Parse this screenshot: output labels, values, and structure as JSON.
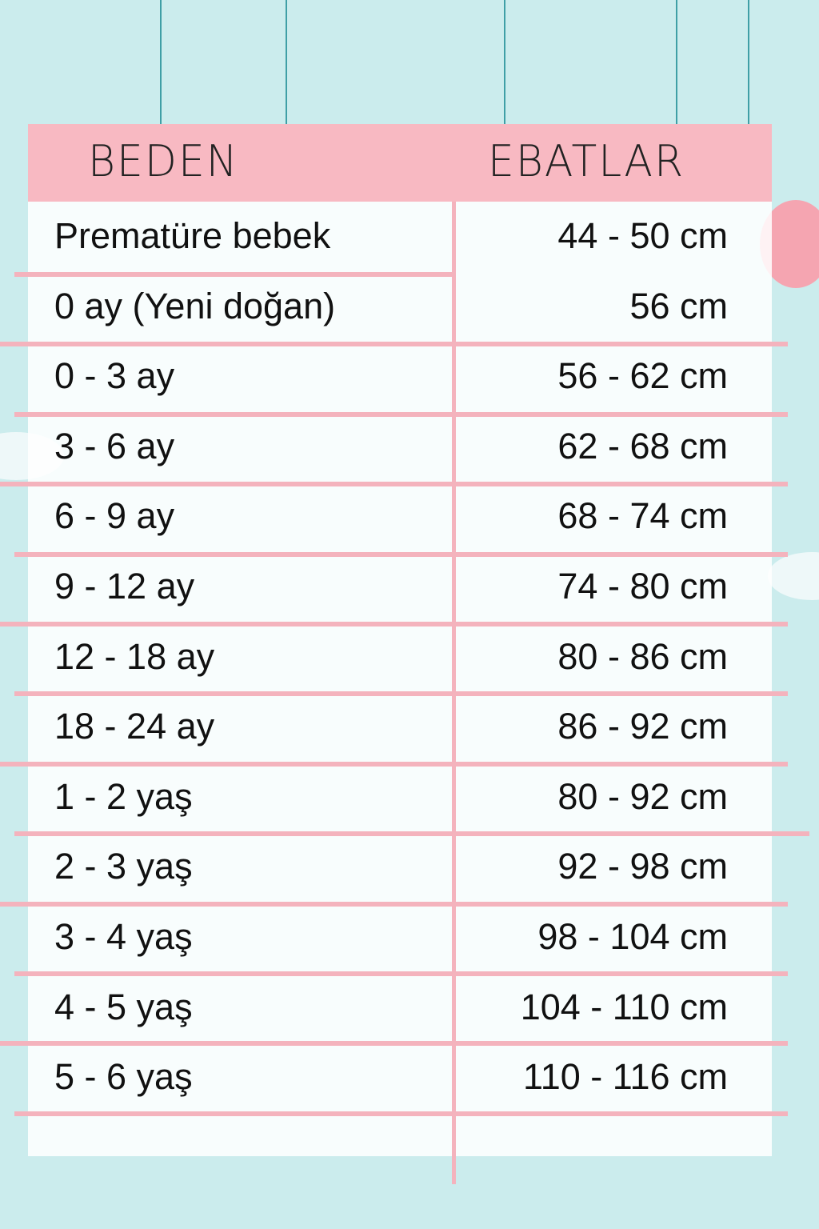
{
  "header": {
    "size_label": "BEDEN",
    "dimension_label": "EBATLAR"
  },
  "colors": {
    "background": "#cbeced",
    "header": "#f8b9c2",
    "rules": "#f4b3bd",
    "strings": "#3f9fa6"
  },
  "rows": [
    {
      "size": "Prematüre bebek",
      "dimension": "44 - 50 cm"
    },
    {
      "size": "0 ay (Yeni doğan)",
      "dimension": "56 cm"
    },
    {
      "size": "0 - 3 ay",
      "dimension": "56 - 62 cm"
    },
    {
      "size": "3 - 6 ay",
      "dimension": "62 - 68 cm"
    },
    {
      "size": "6 - 9 ay",
      "dimension": "68 - 74 cm"
    },
    {
      "size": "9 - 12 ay",
      "dimension": "74 - 80 cm"
    },
    {
      "size": "12 - 18 ay",
      "dimension": "80 - 86 cm"
    },
    {
      "size": "18 - 24 ay",
      "dimension": "86 - 92 cm"
    },
    {
      "size": "1 - 2 yaş",
      "dimension": "80 - 92 cm"
    },
    {
      "size": "2 - 3 yaş",
      "dimension": "92 - 98 cm"
    },
    {
      "size": "3 - 4 yaş",
      "dimension": "98 - 104 cm"
    },
    {
      "size": "4 - 5 yaş",
      "dimension": "104 - 110 cm"
    },
    {
      "size": "5 - 6 yaş",
      "dimension": "110 - 116 cm"
    }
  ]
}
